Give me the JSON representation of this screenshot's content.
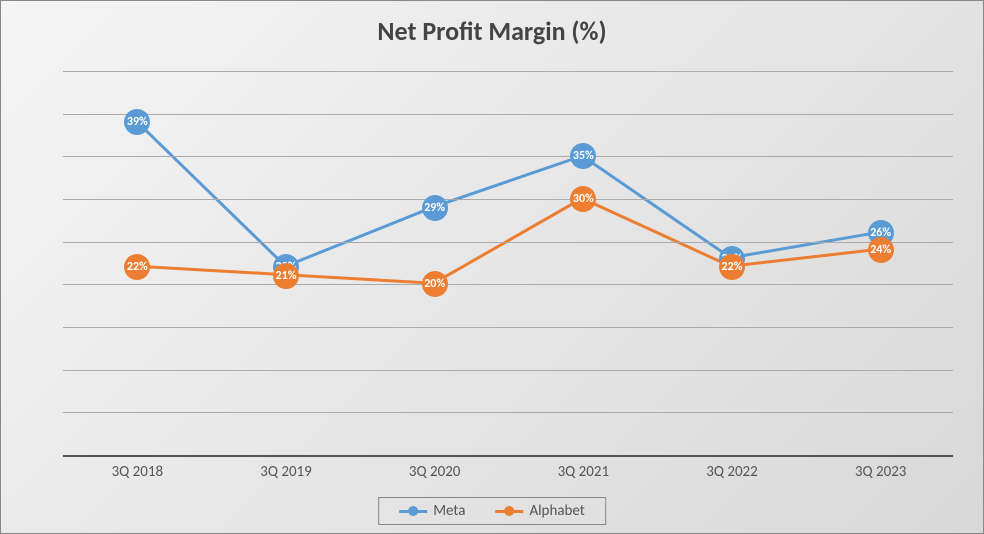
{
  "chart": {
    "type": "line",
    "title": "Net Profit Margin (%)",
    "title_fontsize": 26,
    "title_color": "#444444",
    "background_gradient_start": "#f5f5f5",
    "background_gradient_end": "#d8d8d8",
    "grid_color": "#aaaaaa",
    "axis_color": "#555555",
    "categories": [
      "3Q 2018",
      "3Q 2019",
      "3Q 2020",
      "3Q 2021",
      "3Q 2022",
      "3Q 2023"
    ],
    "x_label_fontsize": 15,
    "x_label_color": "#555555",
    "ylim": [
      0,
      45
    ],
    "grid_steps": 9,
    "marker_radius": 13,
    "line_width": 3,
    "series": [
      {
        "name": "Meta",
        "color": "#5b9bd5",
        "values": [
          39,
          22,
          29,
          35,
          23,
          26
        ],
        "labels": [
          "39%",
          "22%",
          "29%",
          "35%",
          "23%",
          "26%"
        ]
      },
      {
        "name": "Alphabet",
        "color": "#ed7d31",
        "values": [
          22,
          21,
          20,
          30,
          22,
          24
        ],
        "labels": [
          "22%",
          "21%",
          "20%",
          "30%",
          "22%",
          "24%"
        ]
      }
    ],
    "legend": {
      "position": "bottom-center",
      "border_color": "#888888",
      "fontsize": 15,
      "text_color": "#555555"
    }
  }
}
